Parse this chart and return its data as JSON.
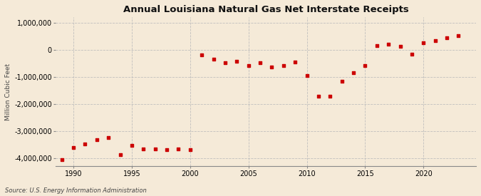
{
  "title": "Annual Louisiana Natural Gas Net Interstate Receipts",
  "ylabel": "Million Cubic Feet",
  "source": "Source: U.S. Energy Information Administration",
  "background_color": "#f5ead8",
  "plot_background_color": "#f5ead8",
  "dot_color": "#cc0000",
  "grid_color": "#bbbbbb",
  "xlim": [
    1988.5,
    2024.5
  ],
  "ylim": [
    -4300000,
    1200000
  ],
  "yticks": [
    -4000000,
    -3000000,
    -2000000,
    -1000000,
    0,
    1000000
  ],
  "xticks": [
    1990,
    1995,
    2000,
    2005,
    2010,
    2015,
    2020
  ],
  "years": [
    1989,
    1990,
    1991,
    1992,
    1993,
    1994,
    1995,
    1996,
    1997,
    1998,
    1999,
    2000,
    2001,
    2002,
    2003,
    2004,
    2005,
    2006,
    2007,
    2008,
    2009,
    2010,
    2011,
    2012,
    2013,
    2014,
    2015,
    2016,
    2017,
    2018,
    2019,
    2020,
    2021,
    2022,
    2023
  ],
  "values": [
    -4050000,
    -3620000,
    -3480000,
    -3330000,
    -3250000,
    -3880000,
    -3530000,
    -3670000,
    -3650000,
    -3680000,
    -3660000,
    -3700000,
    -200000,
    -360000,
    -490000,
    -440000,
    -590000,
    -480000,
    -650000,
    -580000,
    -460000,
    -960000,
    -1720000,
    -1720000,
    -1160000,
    -860000,
    -580000,
    150000,
    200000,
    110000,
    -160000,
    250000,
    340000,
    440000,
    510000
  ]
}
